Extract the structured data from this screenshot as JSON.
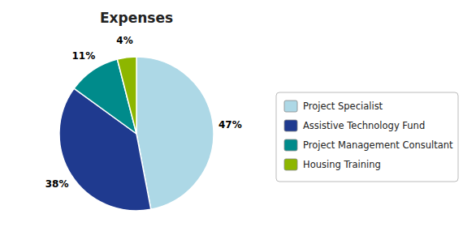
{
  "chart_data": {
    "type": "pie",
    "title": "Expenses",
    "categories": [
      "Project Specialist",
      "Assistive Technology Fund",
      "Project Management Consultant",
      "Housing Training"
    ],
    "values": [
      47,
      38,
      11,
      4
    ],
    "value_labels": [
      "47%",
      "38%",
      "11%",
      "4%"
    ],
    "colors": [
      "#ADD8E6",
      "#1F3A8F",
      "#008B8B",
      "#8DB600"
    ],
    "data_labels": true,
    "legend": "right"
  }
}
